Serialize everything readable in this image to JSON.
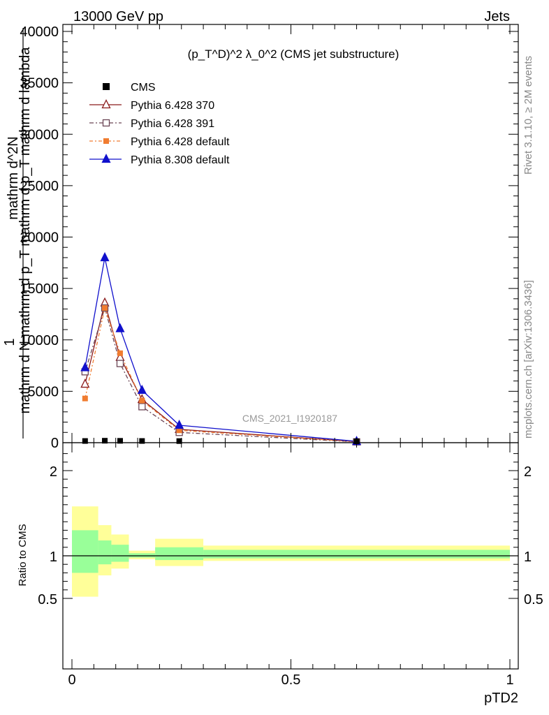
{
  "header": {
    "left": "13000 GeV pp",
    "right": "Jets"
  },
  "side": {
    "rivet": "Rivet 3.1.10, ≥ 2M events",
    "mcplots": "mcplots.cern.ch [arXiv:1306.3436]"
  },
  "chart_data": {
    "type": "line",
    "title": "(p_T^D)^2 λ_0^2 (CMS jet substructure)",
    "watermark": "CMS_2021_I1920187",
    "xlabel": "pTD2",
    "ylabel": {
      "line1": "1",
      "num": "mathrm d^2N",
      "den": "mathrm d N mathrm d p_T mathrm d p_T mathrm d lambda"
    },
    "ratio_ylabel": "Ratio to CMS",
    "xlim": [
      0,
      1
    ],
    "ylim": [
      0,
      40000
    ],
    "ratio_ylim": [
      0.4,
      2.3
    ],
    "xticks": [
      {
        "v": 0,
        "label": "0"
      },
      {
        "v": 0.5,
        "label": "0.5"
      },
      {
        "v": 1,
        "label": "1"
      }
    ],
    "yticks": [
      {
        "v": 0,
        "label": "0"
      },
      {
        "v": 5000,
        "label": "5000"
      },
      {
        "v": 10000,
        "label": "10000"
      },
      {
        "v": 15000,
        "label": "15000"
      },
      {
        "v": 20000,
        "label": "20000"
      },
      {
        "v": 25000,
        "label": "25000"
      },
      {
        "v": 30000,
        "label": "30000"
      },
      {
        "v": 35000,
        "label": "35000"
      },
      {
        "v": 40000,
        "label": "40000"
      }
    ],
    "ratio_yticks": [
      {
        "v": 0.5,
        "label": "0.5"
      },
      {
        "v": 1,
        "label": "1"
      },
      {
        "v": 2,
        "label": "2"
      }
    ],
    "bins": [
      {
        "lo": 0.0,
        "hi": 0.06,
        "center": 0.03
      },
      {
        "lo": 0.06,
        "hi": 0.09,
        "center": 0.075
      },
      {
        "lo": 0.09,
        "hi": 0.13,
        "center": 0.11
      },
      {
        "lo": 0.13,
        "hi": 0.19,
        "center": 0.16
      },
      {
        "lo": 0.19,
        "hi": 0.3,
        "center": 0.245
      },
      {
        "lo": 0.3,
        "hi": 1.0,
        "center": 0.65
      }
    ],
    "cms": [
      30,
      55,
      45,
      30,
      20,
      0
    ],
    "series": [
      {
        "name": "Pythia 6.428 370",
        "color": "#8b1a1a",
        "dash": "",
        "marker": "triangle-open",
        "values": [
          5700,
          13600,
          8300,
          4200,
          1300,
          100
        ]
      },
      {
        "name": "Pythia 6.428 391",
        "color": "#6b4555",
        "dash": "6,3,2,3",
        "marker": "square-open",
        "values": [
          6900,
          13100,
          7700,
          3500,
          1000,
          80
        ]
      },
      {
        "name": "Pythia 6.428 default",
        "color": "#f07c30",
        "dash": "5,3,2,3",
        "marker": "square-filled",
        "values": [
          4300,
          13100,
          8700,
          4100,
          1200,
          90
        ]
      },
      {
        "name": "Pythia 8.308 default",
        "color": "#1010cc",
        "dash": "",
        "marker": "triangle-filled",
        "values": [
          7300,
          18000,
          11100,
          5100,
          1700,
          130
        ]
      }
    ],
    "legend": {
      "placement": "top-left",
      "data_label": "CMS"
    },
    "ratio_bands": {
      "outer_color": "#ffff99",
      "inner_color": "#99ff99",
      "outer": [
        [
          0.52,
          1.58
        ],
        [
          0.77,
          1.36
        ],
        [
          0.85,
          1.25
        ],
        [
          0.96,
          1.06
        ],
        [
          0.88,
          1.2
        ],
        [
          0.94,
          1.12
        ]
      ],
      "inner": [
        [
          0.8,
          1.3
        ],
        [
          0.9,
          1.18
        ],
        [
          0.93,
          1.13
        ],
        [
          0.98,
          1.03
        ],
        [
          0.95,
          1.1
        ],
        [
          0.97,
          1.07
        ]
      ]
    }
  }
}
